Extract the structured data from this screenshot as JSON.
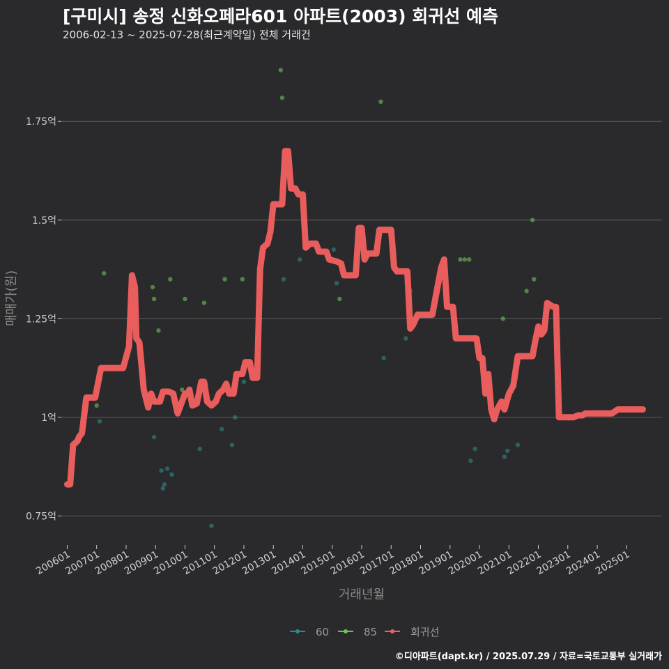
{
  "header": {
    "title": "[구미시] 송정 신화오페라601 아파트(2003) 회귀선 예측",
    "subtitle": "2006-02-13 ~ 2025-07-28(최근계약일) 전체 거래건"
  },
  "footer": {
    "credit": "©디아파트(dapt.kr) / 2025.07.29 / 자료=국토교통부 실거래가"
  },
  "colors": {
    "background": "#2a2a2c",
    "grid": "#5e5e60",
    "series_60": "#2d8a8a",
    "series_85": "#6fc25a",
    "regression": "#f46060"
  },
  "chart_data": {
    "type": "scatter",
    "xlabel": "거래년월",
    "ylabel": "매매가(원)",
    "xlim": [
      2005.8,
      2026.2
    ],
    "ylim": [
      0.68,
      1.92
    ],
    "x_ticks": [
      {
        "value": 2006,
        "label": "200601"
      },
      {
        "value": 2007,
        "label": "200701"
      },
      {
        "value": 2008,
        "label": "200801"
      },
      {
        "value": 2009,
        "label": "200901"
      },
      {
        "value": 2010,
        "label": "201001"
      },
      {
        "value": 2011,
        "label": "201101"
      },
      {
        "value": 2012,
        "label": "201201"
      },
      {
        "value": 2013,
        "label": "201301"
      },
      {
        "value": 2014,
        "label": "201401"
      },
      {
        "value": 2015,
        "label": "201501"
      },
      {
        "value": 2016,
        "label": "201601"
      },
      {
        "value": 2017,
        "label": "201701"
      },
      {
        "value": 2018,
        "label": "201801"
      },
      {
        "value": 2019,
        "label": "201901"
      },
      {
        "value": 2020,
        "label": "202001"
      },
      {
        "value": 2021,
        "label": "202101"
      },
      {
        "value": 2022,
        "label": "202201"
      },
      {
        "value": 2023,
        "label": "202301"
      },
      {
        "value": 2024,
        "label": "202401"
      },
      {
        "value": 2025,
        "label": "202501"
      }
    ],
    "y_ticks": [
      {
        "value": 0.75,
        "label": "0.75억"
      },
      {
        "value": 1.0,
        "label": "1억"
      },
      {
        "value": 1.25,
        "label": "1.25억"
      },
      {
        "value": 1.5,
        "label": "1.5억"
      },
      {
        "value": 1.75,
        "label": "1.75억"
      }
    ],
    "legend": [
      "60",
      "85",
      "회귀선"
    ],
    "series": [
      {
        "name": "60",
        "points": [
          [
            2007.1,
            0.99
          ],
          [
            2008.95,
            0.95
          ],
          [
            2009.2,
            0.865
          ],
          [
            2009.25,
            0.82
          ],
          [
            2009.3,
            0.83
          ],
          [
            2009.4,
            0.87
          ],
          [
            2009.55,
            0.855
          ],
          [
            2010.5,
            0.92
          ],
          [
            2010.9,
            0.725
          ],
          [
            2011.25,
            0.97
          ],
          [
            2011.6,
            0.93
          ],
          [
            2011.7,
            1.0
          ],
          [
            2012.0,
            1.09
          ],
          [
            2012.3,
            1.12
          ],
          [
            2013.35,
            1.35
          ],
          [
            2013.9,
            1.4
          ],
          [
            2014.05,
            1.5
          ],
          [
            2015.05,
            1.425
          ],
          [
            2015.15,
            1.34
          ],
          [
            2016.75,
            1.15
          ],
          [
            2017.5,
            1.2
          ],
          [
            2017.65,
            1.32
          ],
          [
            2019.7,
            0.89
          ],
          [
            2019.85,
            0.92
          ],
          [
            2020.85,
            0.9
          ],
          [
            2020.95,
            0.915
          ],
          [
            2021.1,
            1.08
          ],
          [
            2021.3,
            0.93
          ]
        ]
      },
      {
        "name": "85",
        "points": [
          [
            2007.0,
            1.03
          ],
          [
            2007.25,
            1.365
          ],
          [
            2008.9,
            1.33
          ],
          [
            2008.95,
            1.3
          ],
          [
            2009.1,
            1.22
          ],
          [
            2009.5,
            1.35
          ],
          [
            2009.9,
            1.07
          ],
          [
            2010.0,
            1.3
          ],
          [
            2010.65,
            1.29
          ],
          [
            2011.35,
            1.35
          ],
          [
            2011.95,
            1.35
          ],
          [
            2013.25,
            1.88
          ],
          [
            2013.3,
            1.81
          ],
          [
            2015.25,
            1.3
          ],
          [
            2016.65,
            1.8
          ],
          [
            2019.35,
            1.4
          ],
          [
            2019.5,
            1.4
          ],
          [
            2019.65,
            1.4
          ],
          [
            2020.8,
            1.25
          ],
          [
            2021.6,
            1.32
          ],
          [
            2021.85,
            1.35
          ],
          [
            2021.8,
            1.5
          ]
        ]
      },
      {
        "name": "회귀선",
        "points": [
          [
            2006.0,
            0.83
          ],
          [
            2006.1,
            0.83
          ],
          [
            2006.2,
            0.93
          ],
          [
            2006.35,
            0.94
          ],
          [
            2006.4,
            0.95
          ],
          [
            2006.5,
            0.96
          ],
          [
            2006.65,
            1.05
          ],
          [
            2006.95,
            1.05
          ],
          [
            2007.15,
            1.125
          ],
          [
            2007.9,
            1.125
          ],
          [
            2008.1,
            1.18
          ],
          [
            2008.2,
            1.36
          ],
          [
            2008.3,
            1.33
          ],
          [
            2008.35,
            1.2
          ],
          [
            2008.45,
            1.19
          ],
          [
            2008.6,
            1.07
          ],
          [
            2008.75,
            1.025
          ],
          [
            2008.85,
            1.06
          ],
          [
            2008.95,
            1.04
          ],
          [
            2009.15,
            1.04
          ],
          [
            2009.25,
            1.065
          ],
          [
            2009.45,
            1.065
          ],
          [
            2009.6,
            1.06
          ],
          [
            2009.75,
            1.01
          ],
          [
            2009.9,
            1.04
          ],
          [
            2010.0,
            1.06
          ],
          [
            2010.1,
            1.06
          ],
          [
            2010.15,
            1.07
          ],
          [
            2010.25,
            1.03
          ],
          [
            2010.4,
            1.035
          ],
          [
            2010.5,
            1.07
          ],
          [
            2010.55,
            1.09
          ],
          [
            2010.65,
            1.09
          ],
          [
            2010.75,
            1.04
          ],
          [
            2010.9,
            1.03
          ],
          [
            2011.05,
            1.04
          ],
          [
            2011.15,
            1.06
          ],
          [
            2011.3,
            1.07
          ],
          [
            2011.4,
            1.085
          ],
          [
            2011.5,
            1.06
          ],
          [
            2011.65,
            1.06
          ],
          [
            2011.75,
            1.11
          ],
          [
            2011.95,
            1.11
          ],
          [
            2012.05,
            1.14
          ],
          [
            2012.2,
            1.14
          ],
          [
            2012.3,
            1.1
          ],
          [
            2012.45,
            1.1
          ],
          [
            2012.55,
            1.375
          ],
          [
            2012.65,
            1.43
          ],
          [
            2012.8,
            1.44
          ],
          [
            2012.9,
            1.47
          ],
          [
            2013.0,
            1.54
          ],
          [
            2013.3,
            1.54
          ],
          [
            2013.4,
            1.675
          ],
          [
            2013.5,
            1.675
          ],
          [
            2013.6,
            1.58
          ],
          [
            2013.75,
            1.58
          ],
          [
            2013.85,
            1.565
          ],
          [
            2014.0,
            1.565
          ],
          [
            2014.1,
            1.43
          ],
          [
            2014.25,
            1.44
          ],
          [
            2014.45,
            1.44
          ],
          [
            2014.55,
            1.42
          ],
          [
            2014.8,
            1.42
          ],
          [
            2014.9,
            1.4
          ],
          [
            2015.15,
            1.395
          ],
          [
            2015.3,
            1.39
          ],
          [
            2015.4,
            1.36
          ],
          [
            2015.8,
            1.36
          ],
          [
            2015.9,
            1.48
          ],
          [
            2016.0,
            1.48
          ],
          [
            2016.1,
            1.4
          ],
          [
            2016.2,
            1.415
          ],
          [
            2016.5,
            1.415
          ],
          [
            2016.6,
            1.475
          ],
          [
            2017.0,
            1.475
          ],
          [
            2017.1,
            1.38
          ],
          [
            2017.2,
            1.37
          ],
          [
            2017.55,
            1.37
          ],
          [
            2017.65,
            1.225
          ],
          [
            2017.75,
            1.235
          ],
          [
            2017.9,
            1.26
          ],
          [
            2018.4,
            1.26
          ],
          [
            2018.5,
            1.3
          ],
          [
            2018.7,
            1.38
          ],
          [
            2018.8,
            1.4
          ],
          [
            2018.9,
            1.28
          ],
          [
            2019.1,
            1.28
          ],
          [
            2019.2,
            1.2
          ],
          [
            2019.9,
            1.2
          ],
          [
            2020.0,
            1.15
          ],
          [
            2020.1,
            1.15
          ],
          [
            2020.2,
            1.06
          ],
          [
            2020.3,
            1.11
          ],
          [
            2020.4,
            1.02
          ],
          [
            2020.5,
            0.995
          ],
          [
            2020.6,
            1.02
          ],
          [
            2020.75,
            1.04
          ],
          [
            2020.85,
            1.02
          ],
          [
            2021.0,
            1.06
          ],
          [
            2021.15,
            1.08
          ],
          [
            2021.3,
            1.155
          ],
          [
            2021.8,
            1.155
          ],
          [
            2021.9,
            1.195
          ],
          [
            2022.0,
            1.23
          ],
          [
            2022.1,
            1.21
          ],
          [
            2022.2,
            1.22
          ],
          [
            2022.3,
            1.29
          ],
          [
            2022.5,
            1.28
          ],
          [
            2022.6,
            1.28
          ],
          [
            2022.7,
            1.0
          ],
          [
            2023.2,
            1.0
          ],
          [
            2023.35,
            1.005
          ],
          [
            2023.5,
            1.005
          ],
          [
            2023.6,
            1.01
          ],
          [
            2024.5,
            1.01
          ],
          [
            2024.7,
            1.02
          ],
          [
            2025.55,
            1.02
          ]
        ]
      }
    ]
  }
}
